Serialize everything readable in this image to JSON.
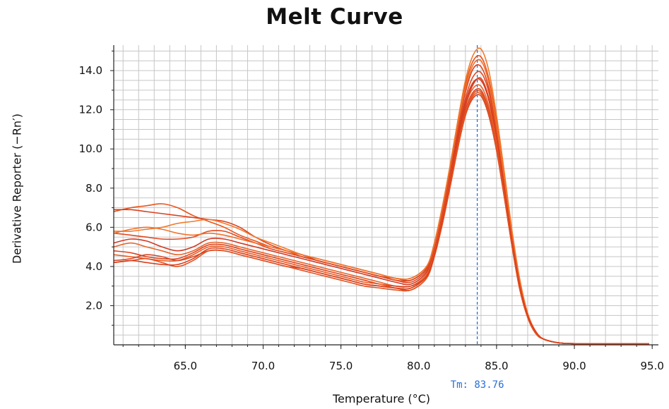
{
  "chart_data": {
    "type": "line",
    "title": "Melt Curve",
    "xlabel": "Temperature (°C)",
    "ylabel": "Derivative Reporter (−Rn′)",
    "xlim": [
      60.4,
      95.4
    ],
    "ylim": [
      0,
      15.3
    ],
    "x_ticks": [
      "65.0",
      "70.0",
      "75.0",
      "80.0",
      "85.0",
      "90.0",
      "95.0"
    ],
    "y_ticks": [
      "2.0",
      "4.0",
      "6.0",
      "8.0",
      "10.0",
      "12.0",
      "14.0"
    ],
    "grid": true,
    "legend": "none",
    "tm_marker": {
      "label": "Tm: 83.76",
      "x": 83.76,
      "color": "#2a6fd6"
    },
    "series_color": "#e8541c",
    "x": [
      60.4,
      61.5,
      62.5,
      63.5,
      64.5,
      65.5,
      66.5,
      67.5,
      68.5,
      69.5,
      70.5,
      71.5,
      72.5,
      73.5,
      74.5,
      75.5,
      76.5,
      77.5,
      78.5,
      79.5,
      80.5,
      81.0,
      81.5,
      82.0,
      82.5,
      83.0,
      83.5,
      84.0,
      84.5,
      85.0,
      85.5,
      86.0,
      86.5,
      87.0,
      87.5,
      88.0,
      89.0,
      90.0,
      92.0,
      94.8
    ],
    "series": [
      {
        "values": [
          6.8,
          7.0,
          7.1,
          7.2,
          7.0,
          6.6,
          6.3,
          6.0,
          5.6,
          5.3,
          5.0,
          4.8,
          4.5,
          4.3,
          4.1,
          3.9,
          3.7,
          3.5,
          3.3,
          3.3,
          3.9,
          5.1,
          6.9,
          9.0,
          11.3,
          13.3,
          14.5,
          14.7,
          13.6,
          11.4,
          8.6,
          5.7,
          3.3,
          1.6,
          0.7,
          0.3,
          0.1,
          0.06,
          0.05,
          0.05
        ]
      },
      {
        "values": [
          6.9,
          6.9,
          6.8,
          6.7,
          6.6,
          6.5,
          6.4,
          6.3,
          6.0,
          5.5,
          5.1,
          4.8,
          4.6,
          4.3,
          4.1,
          3.9,
          3.7,
          3.5,
          3.4,
          3.3,
          3.9,
          5.0,
          6.8,
          8.8,
          11.0,
          12.9,
          14.1,
          14.2,
          13.1,
          10.9,
          8.3,
          5.5,
          3.2,
          1.6,
          0.7,
          0.3,
          0.1,
          0.06,
          0.05,
          0.05
        ]
      },
      {
        "values": [
          5.8,
          5.8,
          5.9,
          6.0,
          6.2,
          6.3,
          6.4,
          6.2,
          5.9,
          5.5,
          5.2,
          4.9,
          4.6,
          4.4,
          4.2,
          4.0,
          3.8,
          3.6,
          3.4,
          3.4,
          4.0,
          5.2,
          7.0,
          9.1,
          11.4,
          13.5,
          14.8,
          15.1,
          14.0,
          11.7,
          8.8,
          5.8,
          3.3,
          1.6,
          0.7,
          0.3,
          0.1,
          0.06,
          0.05,
          0.05
        ]
      },
      {
        "values": [
          5.7,
          5.6,
          5.5,
          5.4,
          5.4,
          5.5,
          5.8,
          5.8,
          5.5,
          5.2,
          4.9,
          4.7,
          4.5,
          4.3,
          4.1,
          3.9,
          3.7,
          3.5,
          3.3,
          3.2,
          3.8,
          4.9,
          6.6,
          8.6,
          10.8,
          12.6,
          13.7,
          13.9,
          12.9,
          10.8,
          8.2,
          5.4,
          3.1,
          1.5,
          0.7,
          0.3,
          0.1,
          0.06,
          0.05,
          0.05
        ]
      },
      {
        "values": [
          5.2,
          5.4,
          5.3,
          5.0,
          4.8,
          5.0,
          5.4,
          5.4,
          5.2,
          5.0,
          4.8,
          4.6,
          4.4,
          4.2,
          4.0,
          3.8,
          3.6,
          3.4,
          3.2,
          3.1,
          3.7,
          4.8,
          6.5,
          8.5,
          10.6,
          12.4,
          13.4,
          13.5,
          12.5,
          10.5,
          8.0,
          5.3,
          3.0,
          1.5,
          0.7,
          0.3,
          0.1,
          0.06,
          0.05,
          0.05
        ]
      },
      {
        "values": [
          5.0,
          5.2,
          5.0,
          4.8,
          4.6,
          4.8,
          5.2,
          5.2,
          5.0,
          4.8,
          4.6,
          4.4,
          4.2,
          4.0,
          3.8,
          3.6,
          3.4,
          3.2,
          3.0,
          3.0,
          3.6,
          4.7,
          6.4,
          8.4,
          10.4,
          12.2,
          13.1,
          13.2,
          12.2,
          10.3,
          7.8,
          5.2,
          2.9,
          1.4,
          0.6,
          0.3,
          0.1,
          0.06,
          0.05,
          0.05
        ]
      },
      {
        "values": [
          4.8,
          4.7,
          4.5,
          4.4,
          4.4,
          4.7,
          5.1,
          5.1,
          4.9,
          4.7,
          4.5,
          4.3,
          4.1,
          3.9,
          3.7,
          3.5,
          3.3,
          3.1,
          3.0,
          3.0,
          3.5,
          4.6,
          6.3,
          8.2,
          10.2,
          12.0,
          12.9,
          13.0,
          12.0,
          10.1,
          7.7,
          5.1,
          2.9,
          1.4,
          0.6,
          0.3,
          0.1,
          0.06,
          0.05,
          0.05
        ]
      },
      {
        "values": [
          4.6,
          4.5,
          4.4,
          4.3,
          4.3,
          4.6,
          5.0,
          5.0,
          4.8,
          4.6,
          4.4,
          4.2,
          4.0,
          3.8,
          3.6,
          3.4,
          3.2,
          3.1,
          2.9,
          2.9,
          3.5,
          4.6,
          6.2,
          8.1,
          10.1,
          11.8,
          12.7,
          12.8,
          11.8,
          10.0,
          7.6,
          5.0,
          2.8,
          1.4,
          0.6,
          0.3,
          0.1,
          0.06,
          0.05,
          0.05
        ]
      },
      {
        "values": [
          4.3,
          4.4,
          4.6,
          4.5,
          4.3,
          4.5,
          4.8,
          4.8,
          4.6,
          4.4,
          4.2,
          4.0,
          3.9,
          3.7,
          3.5,
          3.3,
          3.1,
          3.0,
          2.9,
          2.8,
          3.4,
          4.5,
          6.1,
          8.0,
          10.0,
          11.7,
          12.6,
          12.7,
          11.7,
          9.9,
          7.5,
          5.0,
          2.8,
          1.4,
          0.6,
          0.3,
          0.1,
          0.06,
          0.05,
          0.05
        ]
      },
      {
        "values": [
          4.2,
          4.3,
          4.4,
          4.2,
          4.0,
          4.3,
          4.8,
          4.8,
          4.6,
          4.4,
          4.2,
          4.0,
          3.8,
          3.6,
          3.4,
          3.2,
          3.0,
          2.9,
          2.8,
          2.8,
          3.4,
          4.5,
          6.1,
          8.0,
          10.0,
          11.8,
          12.8,
          12.9,
          11.9,
          10.0,
          7.6,
          5.0,
          2.8,
          1.4,
          0.6,
          0.3,
          0.1,
          0.06,
          0.05,
          0.05
        ]
      },
      {
        "values": [
          5.7,
          5.9,
          6.0,
          5.9,
          5.7,
          5.6,
          5.7,
          5.6,
          5.4,
          5.2,
          5.0,
          4.8,
          4.6,
          4.4,
          4.2,
          4.0,
          3.8,
          3.6,
          3.4,
          3.4,
          4.0,
          5.1,
          6.9,
          9.0,
          11.2,
          13.1,
          14.3,
          14.5,
          13.4,
          11.2,
          8.5,
          5.6,
          3.2,
          1.6,
          0.7,
          0.3,
          0.1,
          0.06,
          0.05,
          0.05
        ]
      },
      {
        "values": [
          4.2,
          4.3,
          4.2,
          4.1,
          4.1,
          4.4,
          4.9,
          4.9,
          4.7,
          4.5,
          4.3,
          4.1,
          3.9,
          3.7,
          3.5,
          3.3,
          3.1,
          3.0,
          2.9,
          2.9,
          3.5,
          4.6,
          6.3,
          8.3,
          10.4,
          12.2,
          13.3,
          13.6,
          12.6,
          10.6,
          8.0,
          5.3,
          3.0,
          1.5,
          0.7,
          0.3,
          0.1,
          0.06,
          0.05,
          0.05
        ]
      }
    ]
  }
}
